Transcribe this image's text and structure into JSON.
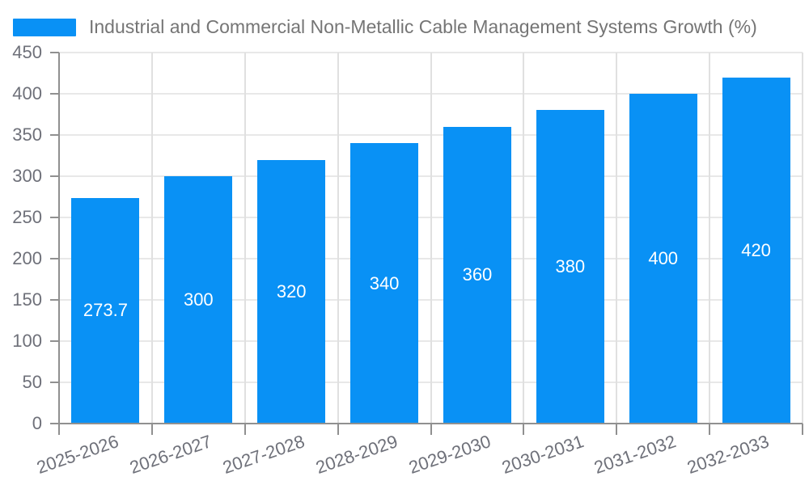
{
  "chart_data": {
    "type": "bar",
    "title": "Industrial and Commercial Non-Metallic Cable Management Systems Growth (%)",
    "series_name": "Industrial and Commercial Non-Metallic Cable Management Systems Growth (%)",
    "categories": [
      "2025-2026",
      "2026-2027",
      "2027-2028",
      "2028-2029",
      "2029-2030",
      "2030-2031",
      "2031-2032",
      "2032-2033"
    ],
    "values": [
      273.7,
      300,
      320,
      340,
      360,
      380,
      400,
      420
    ],
    "value_labels": [
      "273.7",
      "300",
      "320",
      "340",
      "360",
      "380",
      "400",
      "420"
    ],
    "xlabel": "",
    "ylabel": "",
    "ylim": [
      0,
      450
    ],
    "yticks": [
      0,
      50,
      100,
      150,
      200,
      250,
      300,
      350,
      400,
      450
    ],
    "grid": true,
    "legend_position": "top-left",
    "x_label_rotation_deg": -19,
    "bar_color": "#0991F5",
    "value_label_color": "#FFFFFF"
  },
  "style": {
    "legend_text_color": "#757575",
    "tick_text_color": "#6E7079",
    "axis_line_color": "#909090",
    "h_gridline_color": "#E8E8E8",
    "v_gridline_color": "#E0E0E0",
    "background_color": "#FFFFFF"
  }
}
